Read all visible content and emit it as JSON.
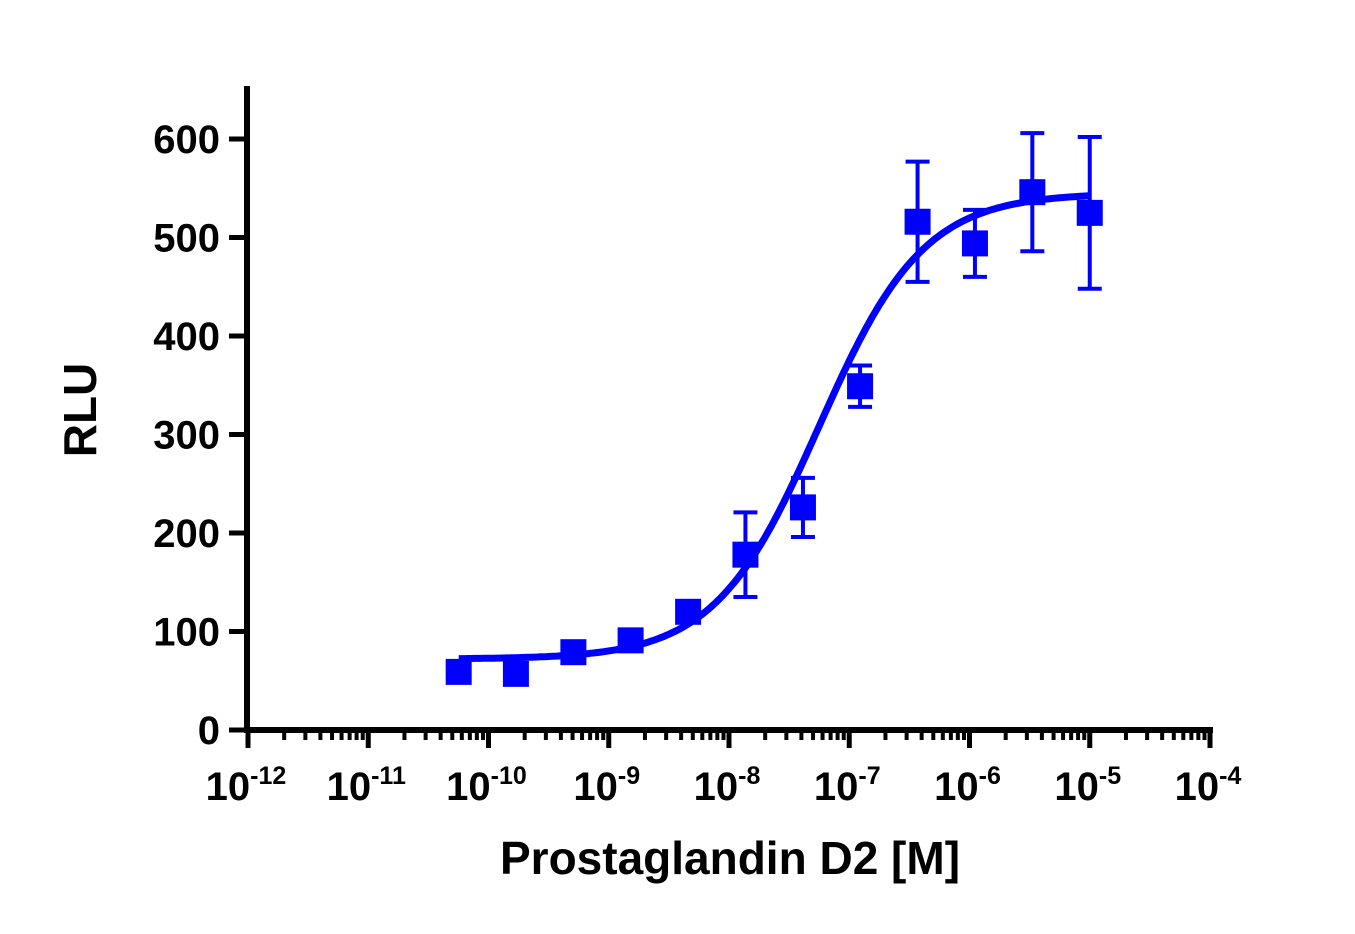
{
  "chart_data": {
    "type": "scatter",
    "xlabel": "Prostaglandin D2 [M]",
    "ylabel": "RLU",
    "x_scale": "log",
    "xlim": [
      1e-12,
      0.0001
    ],
    "ylim": [
      0,
      650
    ],
    "x_ticks": [
      {
        "base": "10",
        "exp": "-12"
      },
      {
        "base": "10",
        "exp": "-11"
      },
      {
        "base": "10",
        "exp": "-10"
      },
      {
        "base": "10",
        "exp": "-9"
      },
      {
        "base": "10",
        "exp": "-8"
      },
      {
        "base": "10",
        "exp": "-7"
      },
      {
        "base": "10",
        "exp": "-6"
      },
      {
        "base": "10",
        "exp": "-5"
      },
      {
        "base": "10",
        "exp": "-4"
      }
    ],
    "y_ticks": [
      "0",
      "100",
      "200",
      "300",
      "400",
      "500",
      "600"
    ],
    "grid": false,
    "color": "#0000ff",
    "series": [
      {
        "marker": "square",
        "points": [
          {
            "x": 5.65e-11,
            "y": 59,
            "err": 5
          },
          {
            "x": 1.69e-10,
            "y": 57,
            "err": 5
          },
          {
            "x": 5.08e-10,
            "y": 79,
            "err": 5
          },
          {
            "x": 1.52e-09,
            "y": 91,
            "err": 5
          },
          {
            "x": 4.57e-09,
            "y": 120,
            "err": 9
          },
          {
            "x": 1.37e-08,
            "y": 178,
            "err": 43
          },
          {
            "x": 4.12e-08,
            "y": 226,
            "err": 30
          },
          {
            "x": 1.23e-07,
            "y": 349,
            "err": 21
          },
          {
            "x": 3.7e-07,
            "y": 516,
            "err": 61
          },
          {
            "x": 1.11e-06,
            "y": 494,
            "err": 34
          },
          {
            "x": 3.33e-06,
            "y": 546,
            "err": 60
          },
          {
            "x": 1e-05,
            "y": 525,
            "err": 77
          }
        ],
        "fit": {
          "model": "sigmoidal dose-response",
          "bottom": 72,
          "top": 545,
          "log_ec50": -7.25,
          "hill": 1.0
        }
      }
    ]
  }
}
